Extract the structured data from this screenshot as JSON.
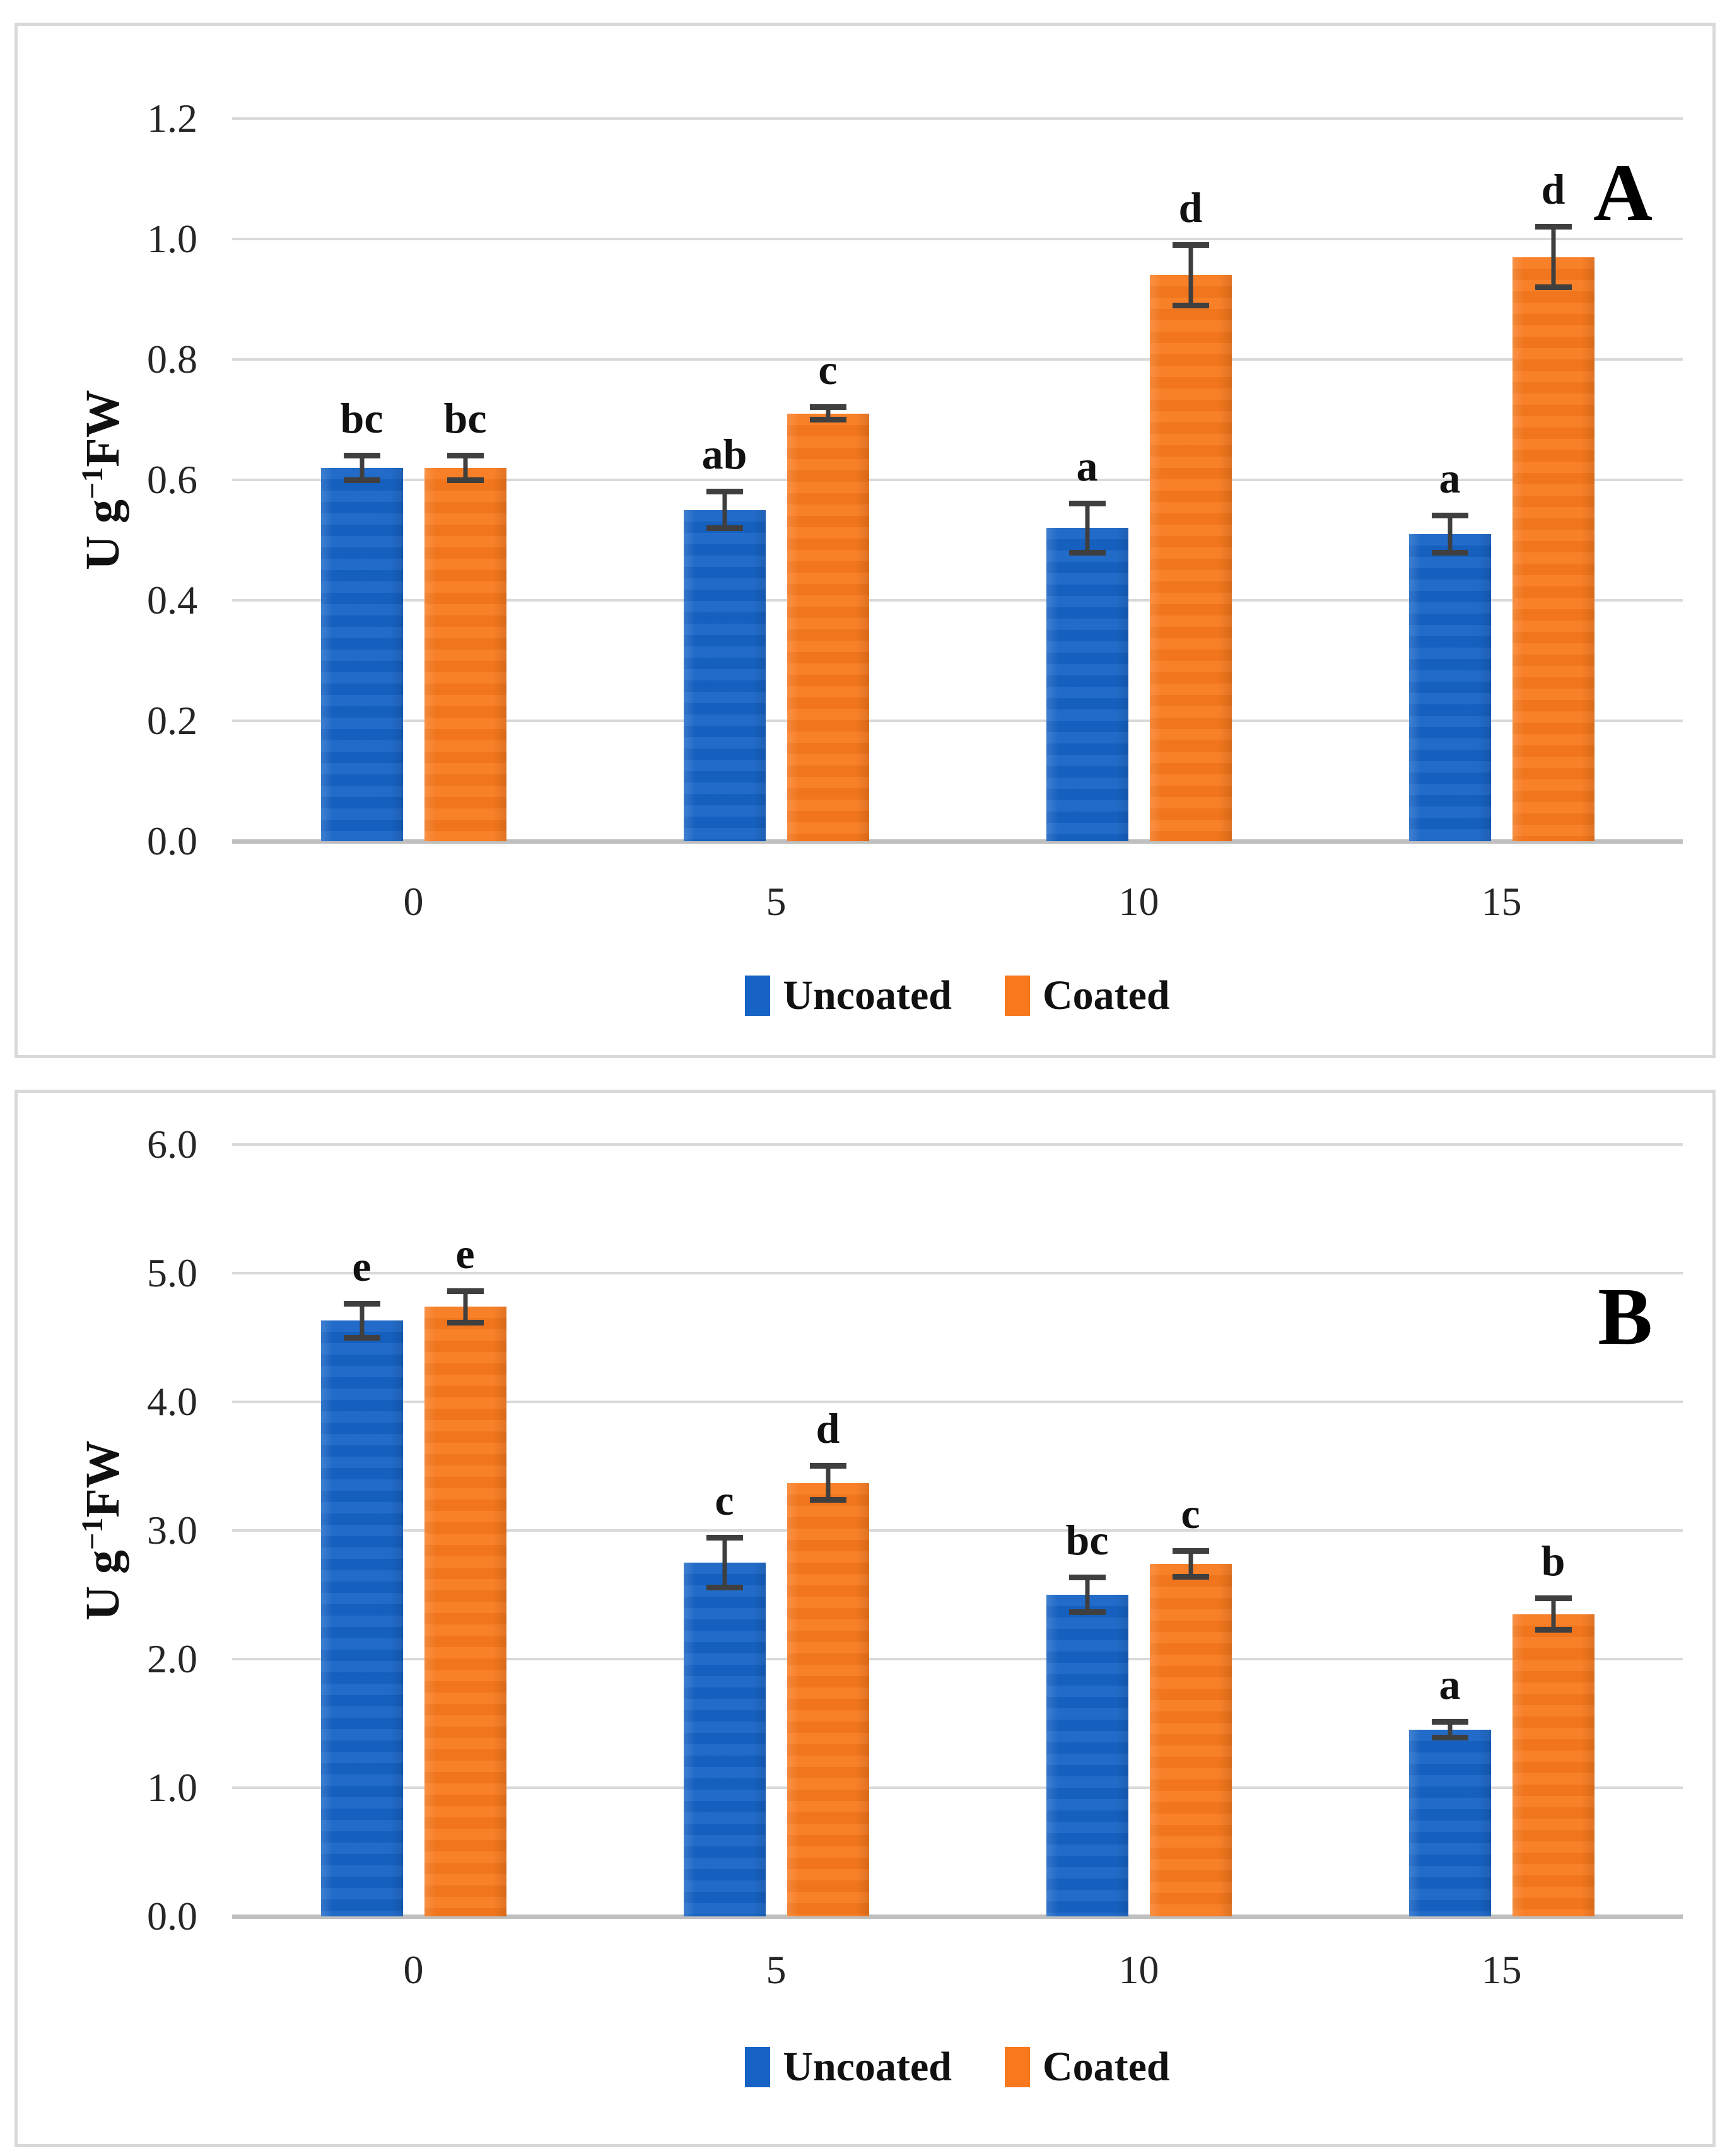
{
  "figure": {
    "background": "#ffffff",
    "panel_border_color": "#d9d9d9"
  },
  "colors": {
    "uncoated": "#1663C5",
    "coated": "#F8791D",
    "error_bar": "#3f3f3f",
    "gridline": "#d9d9d9",
    "axis_line": "#bfbfbf",
    "text": "#1f1f1f"
  },
  "y_axis_title": {
    "prefix": "U g",
    "sup": "−1",
    "suffix": "FW"
  },
  "legend": {
    "items": [
      {
        "label": "Uncoated",
        "color_key": "uncoated"
      },
      {
        "label": "Coated",
        "color_key": "coated"
      }
    ]
  },
  "chart_data": [
    {
      "type": "bar",
      "panel_label": "A",
      "title": "",
      "xlabel": "",
      "ylabel": "U g-1FW",
      "ylim": [
        0,
        1.2
      ],
      "ytick_step": 0.2,
      "yticks": [
        "1.2",
        "1.0",
        "0.8",
        "0.6",
        "0.4",
        "0.2",
        "0.0"
      ],
      "categories": [
        "0",
        "5",
        "10",
        "15"
      ],
      "grid": "horizontal",
      "legend_position": "bottom",
      "series": [
        {
          "name": "Uncoated",
          "color_key": "uncoated",
          "values": [
            0.62,
            0.55,
            0.52,
            0.51
          ],
          "errors": [
            0.02,
            0.03,
            0.04,
            0.03
          ],
          "letters": [
            "bc",
            "ab",
            "a",
            "a"
          ]
        },
        {
          "name": "Coated",
          "color_key": "coated",
          "values": [
            0.62,
            0.71,
            0.94,
            0.97
          ],
          "errors": [
            0.02,
            0.01,
            0.05,
            0.05
          ],
          "letters": [
            "bc",
            "c",
            "d",
            "d"
          ]
        }
      ]
    },
    {
      "type": "bar",
      "panel_label": "B",
      "title": "",
      "xlabel": "",
      "ylabel": "U g-1FW",
      "ylim": [
        0,
        6.0
      ],
      "ytick_step": 1.0,
      "yticks": [
        "6.0",
        "5.0",
        "4.0",
        "3.0",
        "2.0",
        "1.0",
        "0.0"
      ],
      "categories": [
        "0",
        "5",
        "10",
        "15"
      ],
      "grid": "horizontal",
      "legend_position": "bottom",
      "series": [
        {
          "name": "Uncoated",
          "color_key": "uncoated",
          "values": [
            4.63,
            2.75,
            2.5,
            1.45
          ],
          "errors": [
            0.13,
            0.19,
            0.13,
            0.06
          ],
          "letters": [
            "e",
            "c",
            "bc",
            "a"
          ]
        },
        {
          "name": "Coated",
          "color_key": "coated",
          "values": [
            4.74,
            3.37,
            2.74,
            2.35
          ],
          "errors": [
            0.12,
            0.13,
            0.1,
            0.12
          ],
          "letters": [
            "e",
            "d",
            "c",
            "b"
          ]
        }
      ]
    }
  ]
}
